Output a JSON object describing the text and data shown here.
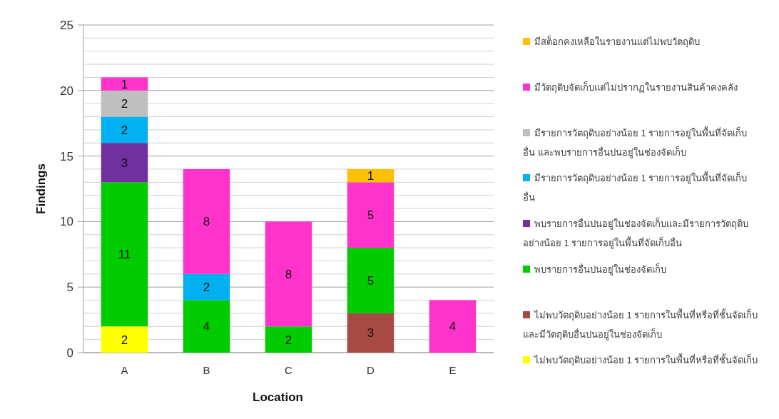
{
  "chart_data": {
    "type": "bar",
    "stacked": true,
    "xlabel": "Location",
    "ylabel": "Findings",
    "categories": [
      "A",
      "B",
      "C",
      "D",
      "E"
    ],
    "ylim": [
      0,
      25
    ],
    "yticks": [
      0,
      {
        "value": 1,
        "label": null
      },
      {
        "value": 2,
        "label": null
      },
      {
        "value": 3,
        "label": null
      },
      {
        "value": 4,
        "label": null
      },
      5,
      {
        "value": 6,
        "label": null
      },
      {
        "value": 7,
        "label": null
      },
      {
        "value": 8,
        "label": null
      },
      {
        "value": 9,
        "label": null
      },
      10,
      {
        "value": 11,
        "label": null
      },
      {
        "value": 12,
        "label": null
      },
      {
        "value": 13,
        "label": null
      },
      {
        "value": 14,
        "label": null
      },
      15,
      {
        "value": 16,
        "label": null
      },
      {
        "value": 17,
        "label": null
      },
      {
        "value": 18,
        "label": null
      },
      {
        "value": 19,
        "label": null
      },
      20,
      {
        "value": 21,
        "label": null
      },
      {
        "value": 22,
        "label": null
      },
      {
        "value": 23,
        "label": null
      },
      {
        "value": 24,
        "label": null
      },
      25
    ],
    "grid": "y",
    "legend": "right",
    "data_labels": true,
    "series": [
      {
        "name": "ไม่พบวัตถุดิบอย่างน้อย 1 รายการในพื้นที่หรือที่ชั้นจัดเก็บ",
        "color": "#ffff00",
        "values": [
          2,
          null,
          null,
          null,
          null
        ]
      },
      {
        "name": "ไม่พบวัตถุดิบอย่างน้อย 1 รายการในพื้นที่หรือที่ชั้นจัดเก็บ และมีวัตถุดิบอื่นปนอยู่ในช่องจัดเก็บ",
        "color": "#a84a44",
        "values": [
          null,
          null,
          null,
          3,
          null
        ]
      },
      {
        "name": "พบรายการอื่นปนอยู่ในช่องจัดเก็บ",
        "color": "#00cc00",
        "values": [
          11,
          4,
          2,
          5,
          null
        ]
      },
      {
        "name": "พบรายการอื่นปนอยู่ในช่องจัดเก็บและมีรายการวัตถุดิบอย่างน้อย 1 รายการอยู่ในพื้นที่จัดเก็บอื่น",
        "color": "#7030a0",
        "values": [
          3,
          null,
          null,
          null,
          null
        ]
      },
      {
        "name": "มีรายการวัตถุดิบอย่างน้อย 1 รายการอยู่ในพื้นที่จัดเก็บอื่น",
        "color": "#00b0f0",
        "values": [
          2,
          2,
          null,
          null,
          null
        ]
      },
      {
        "name": "มีรายการวัตถุดิบอย่างน้อย 1 รายการอยู่ในพื้นที่จัดเก็บอื่น และพบรายการอื่นปนอยู่ในช่องจัดเก็บ",
        "color": "#bfbfbf",
        "values": [
          2,
          null,
          null,
          null,
          null
        ]
      },
      {
        "name": "มีวัตถุดิบจัดเก็บแต่ไม่ปรากฏในรายงานสินค้าคงคลัง",
        "color": "#ff33cc",
        "values": [
          1,
          8,
          8,
          5,
          4
        ]
      },
      {
        "name": "มีสต็อกคงเหลือในรายงานแต่ไม่พบวัตถุดิบ",
        "color": "#ffc000",
        "values": [
          null,
          null,
          null,
          1,
          null
        ]
      }
    ]
  }
}
